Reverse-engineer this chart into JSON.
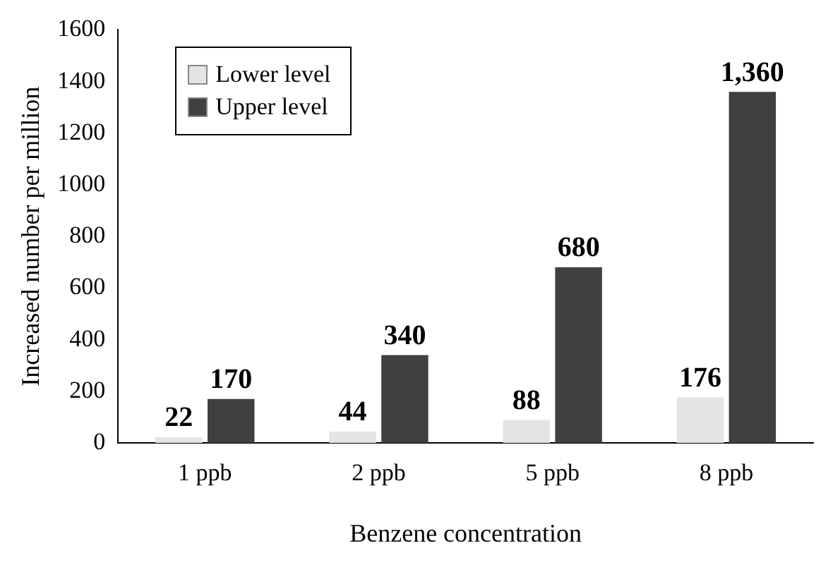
{
  "chart_data": {
    "type": "bar",
    "xlabel": "Benzene concentration",
    "ylabel": "Increased number per million",
    "categories": [
      "1 ppb",
      "2 ppb",
      "5 ppb",
      "8 ppb"
    ],
    "series": [
      {
        "name": "Lower level",
        "color": "#e4e4e4",
        "values": [
          22,
          44,
          88,
          176
        ],
        "value_labels": [
          "22",
          "44",
          "88",
          "176"
        ]
      },
      {
        "name": "Upper level",
        "color": "#404040",
        "values": [
          170,
          340,
          680,
          1360
        ],
        "value_labels": [
          "170",
          "340",
          "680",
          "1,360"
        ]
      }
    ],
    "ylim": [
      0,
      1600
    ],
    "yticks": [
      0,
      200,
      400,
      600,
      800,
      1000,
      1200,
      1400,
      1600
    ],
    "grid": false,
    "legend": "top left"
  }
}
